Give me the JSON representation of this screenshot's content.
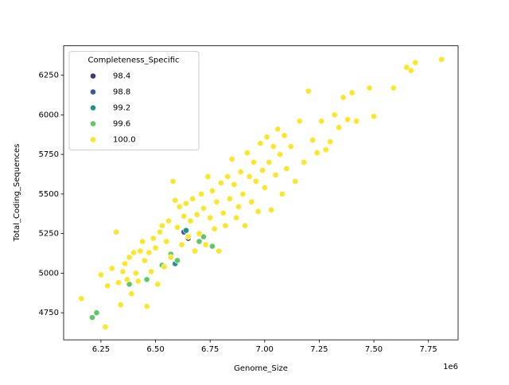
{
  "chart_data": {
    "type": "scatter",
    "x_label": "Genome_Size",
    "y_label": "Total_Coding_Sequences",
    "x_offset_label": "1e6",
    "legend_title": "Completeness_Specific",
    "legend_position": "upper left",
    "xlim": [
      6.079,
      7.886
    ],
    "ylim": [
      4579,
      6436
    ],
    "xticks": [
      6.25,
      {
        "value": 6.5,
        "label": "6.50"
      },
      6.75,
      {
        "value": 7.0,
        "label": "7.00"
      },
      7.25,
      {
        "value": 7.5,
        "label": "7.50"
      },
      7.75
    ],
    "yticks": [
      4750,
      5000,
      5250,
      5500,
      5750,
      6000,
      6250
    ],
    "series": [
      {
        "name": "98.4",
        "color": "#46327e",
        "x": [
          6.65
        ],
        "y": [
          5220
        ]
      },
      {
        "name": "98.8",
        "color": "#365c8d",
        "x": [
          6.63
        ],
        "y": [
          5260
        ]
      },
      {
        "name": "99.2",
        "color": "#21918c",
        "x": [
          6.64,
          6.59
        ],
        "y": [
          5270,
          5060
        ]
      },
      {
        "name": "99.6",
        "color": "#5ec962",
        "x": [
          6.21,
          6.23,
          6.38,
          6.46,
          6.53,
          6.57,
          6.6,
          6.7,
          6.72,
          6.76
        ],
        "y": [
          4720,
          4750,
          4930,
          4960,
          5050,
          5120,
          5080,
          5200,
          5230,
          5170
        ]
      },
      {
        "name": "100.0",
        "color": "#fde725",
        "x": [
          6.16,
          6.27,
          6.25,
          6.28,
          6.3,
          6.32,
          6.33,
          6.34,
          6.35,
          6.36,
          6.37,
          6.38,
          6.39,
          6.4,
          6.41,
          6.42,
          6.43,
          6.44,
          6.45,
          6.46,
          6.47,
          6.48,
          6.49,
          6.5,
          6.51,
          6.52,
          6.53,
          6.54,
          6.55,
          6.56,
          6.57,
          6.58,
          6.59,
          6.6,
          6.61,
          6.62,
          6.63,
          6.64,
          6.65,
          6.66,
          6.67,
          6.68,
          6.69,
          6.7,
          6.71,
          6.72,
          6.73,
          6.74,
          6.75,
          6.76,
          6.77,
          6.78,
          6.79,
          6.8,
          6.81,
          6.82,
          6.83,
          6.84,
          6.85,
          6.86,
          6.87,
          6.88,
          6.89,
          6.9,
          6.91,
          6.92,
          6.93,
          6.94,
          6.95,
          6.96,
          6.97,
          6.98,
          6.99,
          7.0,
          7.01,
          7.02,
          7.03,
          7.04,
          7.05,
          7.06,
          7.07,
          7.08,
          7.09,
          7.1,
          7.12,
          7.14,
          7.16,
          7.18,
          7.2,
          7.22,
          7.24,
          7.26,
          7.28,
          7.3,
          7.32,
          7.34,
          7.36,
          7.38,
          7.4,
          7.42,
          7.48,
          7.5,
          7.59,
          7.65,
          7.67,
          7.69,
          7.81
        ],
        "y": [
          4840,
          4660,
          4990,
          4920,
          5030,
          5260,
          4940,
          4800,
          5010,
          5060,
          4960,
          5100,
          4870,
          5130,
          5000,
          4950,
          5140,
          5200,
          5080,
          4790,
          5130,
          5010,
          5220,
          5160,
          4930,
          5260,
          5300,
          5040,
          5200,
          5330,
          5100,
          5580,
          5460,
          5290,
          5420,
          5180,
          5360,
          5440,
          5230,
          5330,
          5470,
          5140,
          5370,
          5250,
          5500,
          5410,
          5180,
          5610,
          5350,
          5520,
          5280,
          5450,
          5140,
          5570,
          5380,
          5300,
          5610,
          5470,
          5720,
          5560,
          5350,
          5420,
          5640,
          5500,
          5300,
          5760,
          5610,
          5450,
          5700,
          5580,
          5390,
          5820,
          5650,
          5540,
          5860,
          5700,
          5400,
          5800,
          5620,
          5910,
          5750,
          5500,
          5870,
          5660,
          5800,
          5580,
          5960,
          5700,
          6150,
          5840,
          5760,
          5960,
          5780,
          5830,
          6000,
          5920,
          6110,
          5970,
          6140,
          5960,
          6170,
          5990,
          6170,
          6300,
          6280,
          6330,
          6350
        ]
      }
    ]
  }
}
